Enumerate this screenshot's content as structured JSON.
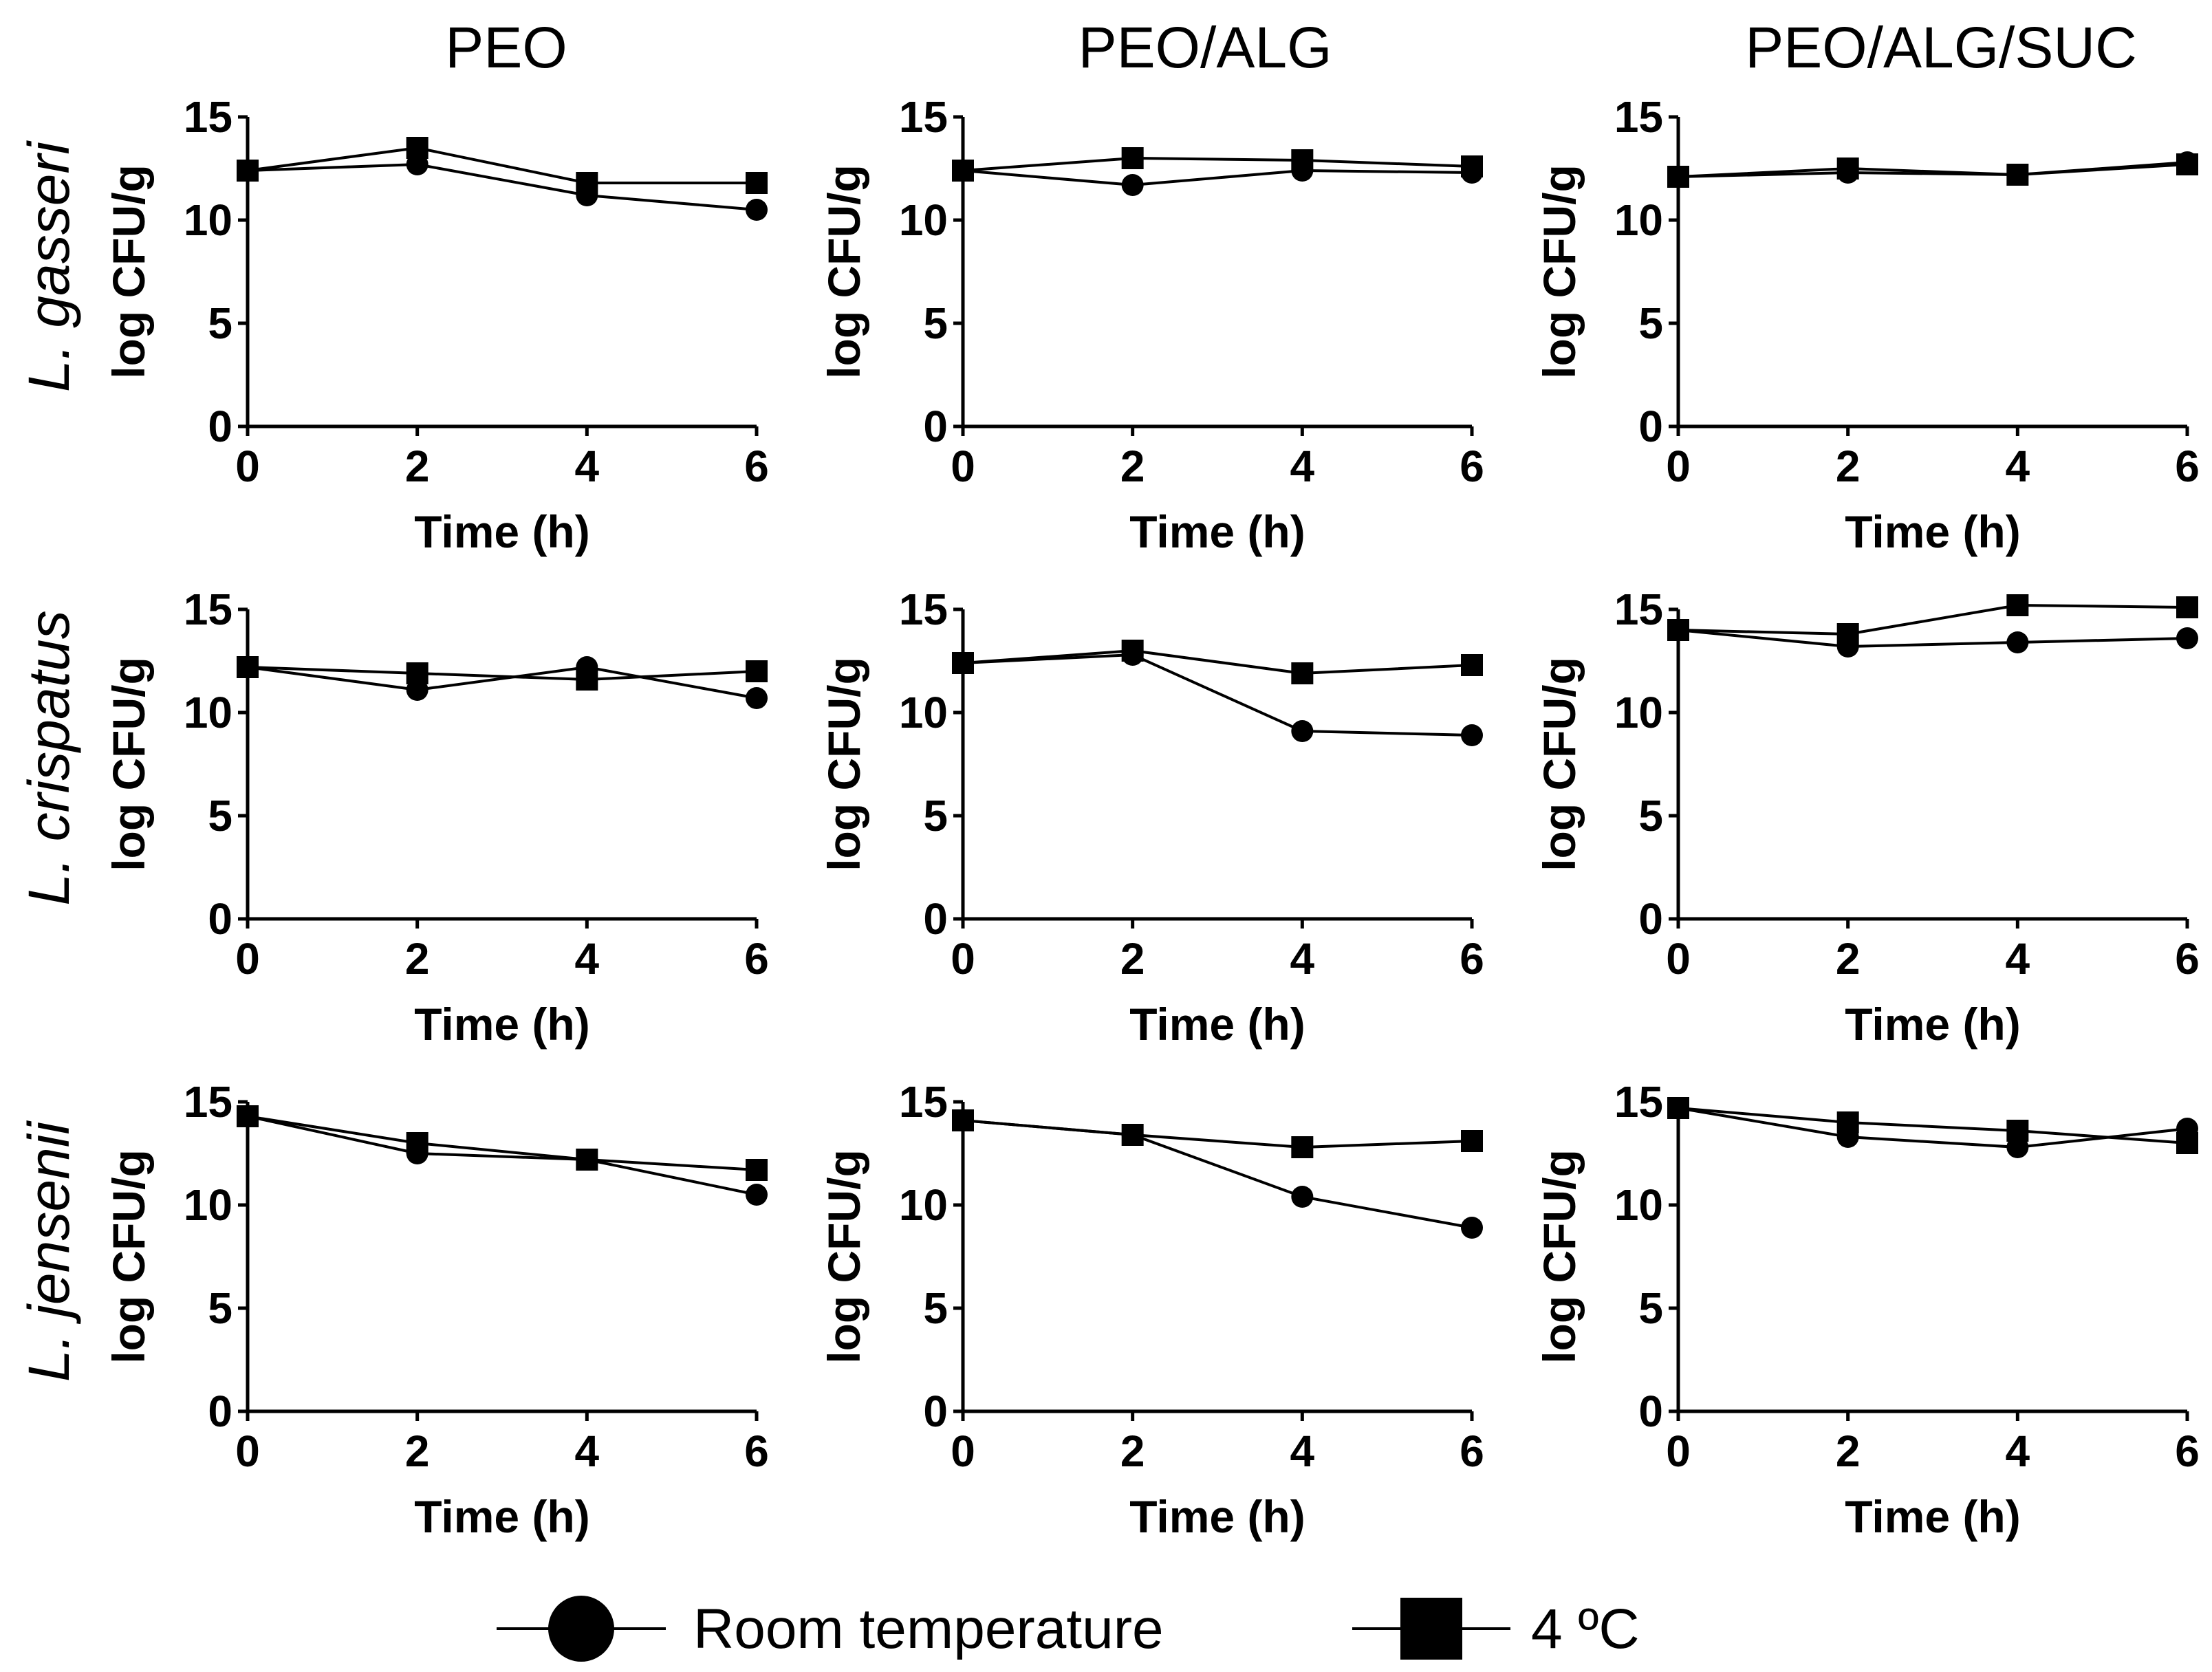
{
  "chart_data": {
    "type": "line",
    "title": "",
    "column_titles": [
      "PEO",
      "PEO/ALG",
      "PEO/ALG/SUC"
    ],
    "row_labels": [
      "L. gasseri",
      "L. crispatus",
      "L. jensenii"
    ],
    "legend": [
      {
        "name": "Room temperature",
        "marker": "circle"
      },
      {
        "name": "4 ºC",
        "marker": "square"
      }
    ],
    "legend_position": "bottom-center",
    "xlabel": "Time (h)",
    "ylabel": "log CFU/g",
    "x": [
      0,
      2,
      4,
      6
    ],
    "x_ticks": [
      "0",
      "2",
      "4",
      "6"
    ],
    "y_ticks": [
      "0",
      "5",
      "10",
      "15"
    ],
    "xlim": [
      0,
      6
    ],
    "ylim": [
      0,
      15
    ],
    "grid": false,
    "panels": [
      {
        "row": 0,
        "col": 0,
        "series": [
          {
            "name": "Room temperature",
            "values": [
              12.4,
              12.7,
              11.2,
              10.5
            ]
          },
          {
            "name": "4 ºC",
            "values": [
              12.4,
              13.5,
              11.8,
              11.8
            ]
          }
        ]
      },
      {
        "row": 0,
        "col": 1,
        "series": [
          {
            "name": "Room temperature",
            "values": [
              12.4,
              11.7,
              12.4,
              12.3
            ]
          },
          {
            "name": "4 ºC",
            "values": [
              12.4,
              13.0,
              12.9,
              12.6
            ]
          }
        ]
      },
      {
        "row": 0,
        "col": 2,
        "series": [
          {
            "name": "Room temperature",
            "values": [
              12.1,
              12.3,
              12.2,
              12.8
            ]
          },
          {
            "name": "4 ºC",
            "values": [
              12.1,
              12.5,
              12.2,
              12.7
            ]
          }
        ]
      },
      {
        "row": 1,
        "col": 0,
        "series": [
          {
            "name": "Room temperature",
            "values": [
              12.2,
              11.1,
              12.2,
              10.7
            ]
          },
          {
            "name": "4 ºC",
            "values": [
              12.2,
              11.9,
              11.6,
              12.0
            ]
          }
        ]
      },
      {
        "row": 1,
        "col": 1,
        "series": [
          {
            "name": "Room temperature",
            "values": [
              12.4,
              12.8,
              9.1,
              8.9
            ]
          },
          {
            "name": "4 ºC",
            "values": [
              12.4,
              13.0,
              11.9,
              12.3
            ]
          }
        ]
      },
      {
        "row": 1,
        "col": 2,
        "series": [
          {
            "name": "Room temperature",
            "values": [
              14.0,
              13.2,
              13.4,
              13.6
            ]
          },
          {
            "name": "4 ºC",
            "values": [
              14.0,
              13.8,
              15.2,
              15.1
            ]
          }
        ]
      },
      {
        "row": 2,
        "col": 0,
        "series": [
          {
            "name": "Room temperature",
            "values": [
              14.3,
              12.5,
              12.2,
              10.5
            ]
          },
          {
            "name": "4 ºC",
            "values": [
              14.3,
              13.0,
              12.2,
              11.7
            ]
          }
        ]
      },
      {
        "row": 2,
        "col": 1,
        "series": [
          {
            "name": "Room temperature",
            "values": [
              14.1,
              13.4,
              10.4,
              8.9
            ]
          },
          {
            "name": "4 ºC",
            "values": [
              14.1,
              13.4,
              12.8,
              13.1
            ]
          }
        ]
      },
      {
        "row": 2,
        "col": 2,
        "series": [
          {
            "name": "Room temperature",
            "values": [
              14.7,
              13.3,
              12.8,
              13.7
            ]
          },
          {
            "name": "4 ºC",
            "values": [
              14.7,
              14.0,
              13.6,
              13.0
            ]
          }
        ]
      }
    ]
  }
}
